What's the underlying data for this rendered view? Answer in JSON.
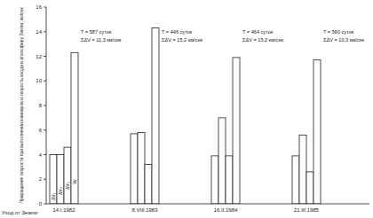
{
  "chart_data": {
    "type": "bar",
    "y_label": "Приращения скорости при выполнении маневров и скорость входа в атмосферу Земли, км/сек",
    "x_label": "Уход от Земли",
    "categories": [
      "14.I.1982",
      "8.VIII.1983",
      "16.II.1984",
      "21.III.1985"
    ],
    "series": [
      {
        "name": "ΔV₁",
        "color": "#ffffff",
        "values": [
          4.0,
          5.7,
          3.9,
          3.9
        ]
      },
      {
        "name": "ΔV₂",
        "color": "#ffffff",
        "values": [
          4.0,
          5.8,
          7.0,
          5.6
        ]
      },
      {
        "name": "ΔV₃",
        "color": "#ffffff",
        "values": [
          4.6,
          3.2,
          3.9,
          2.6
        ]
      },
      {
        "name": "Vᴇ",
        "color": "#ffffff",
        "values": [
          12.3,
          14.3,
          11.9,
          11.7
        ]
      }
    ],
    "annotations": [
      [
        "T = 587 суток",
        "ΣΔV = 11,3 км/сек"
      ],
      [
        "T = 446 суток",
        "ΣΔV = 15,2 км/сек"
      ],
      [
        "T = 464 суток",
        "ΣΔV = 15,2 км/сек"
      ],
      [
        "T = 560 суток",
        "ΣΔV = 10,3 км/сек"
      ]
    ],
    "ylim": [
      0,
      16
    ],
    "yticks": [
      0,
      2,
      4,
      6,
      8,
      10,
      12,
      14,
      16
    ],
    "grid": false
  }
}
